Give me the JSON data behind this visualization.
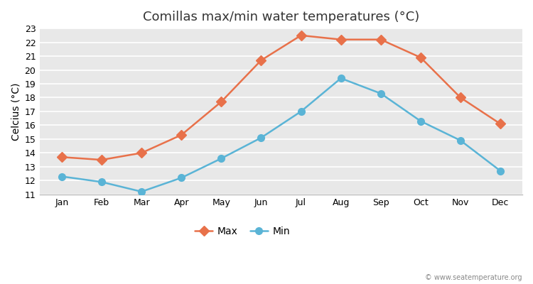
{
  "title": "Comillas max/min water temperatures (°C)",
  "ylabel": "Celcius (°C)",
  "months": [
    "Jan",
    "Feb",
    "Mar",
    "Apr",
    "May",
    "Jun",
    "Jul",
    "Aug",
    "Sep",
    "Oct",
    "Nov",
    "Dec"
  ],
  "max_values": [
    13.7,
    13.5,
    14.0,
    15.3,
    17.7,
    20.7,
    22.5,
    22.2,
    22.2,
    20.9,
    18.0,
    16.1
  ],
  "min_values": [
    12.3,
    11.9,
    11.2,
    12.2,
    13.6,
    15.1,
    17.0,
    19.4,
    18.3,
    16.3,
    14.9,
    12.7
  ],
  "max_color": "#e8714a",
  "min_color": "#5ab4d6",
  "ylim": [
    11,
    23
  ],
  "yticks": [
    11,
    12,
    13,
    14,
    15,
    16,
    17,
    18,
    19,
    20,
    21,
    22,
    23
  ],
  "figure_bg_color": "#ffffff",
  "plot_bg_color": "#e8e8e8",
  "grid_color": "#ffffff",
  "max_marker": "D",
  "min_marker": "o",
  "max_markersize": 7,
  "min_markersize": 7,
  "linewidth": 1.8,
  "legend_labels": [
    "Max",
    "Min"
  ],
  "watermark": "© www.seatemperature.org",
  "title_fontsize": 13,
  "tick_fontsize": 9,
  "ylabel_fontsize": 10
}
